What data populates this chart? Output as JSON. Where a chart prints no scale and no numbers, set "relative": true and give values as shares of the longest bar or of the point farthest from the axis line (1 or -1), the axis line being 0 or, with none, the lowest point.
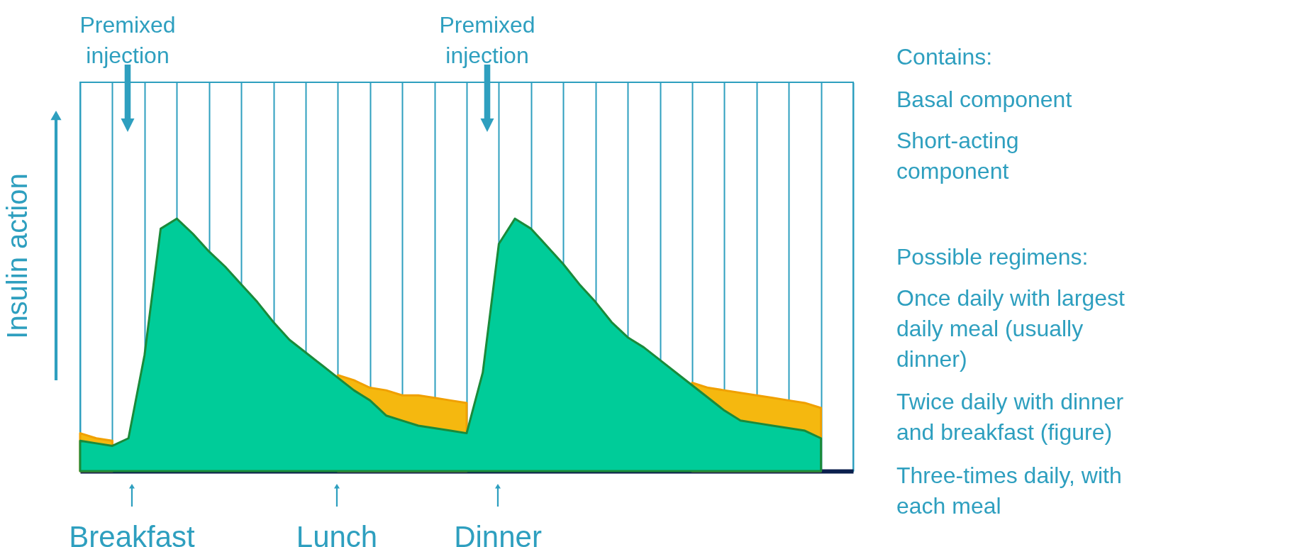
{
  "chart_data": {
    "type": "area",
    "relative": true,
    "grid": "x",
    "ylabel": "Insulin action",
    "categories": [
      null,
      null,
      null,
      null,
      null,
      null,
      null,
      null,
      null,
      null,
      null,
      null,
      null,
      null,
      null,
      null,
      null,
      null,
      null,
      null,
      null,
      null,
      null,
      null,
      null,
      null,
      null,
      null,
      null,
      null,
      null,
      null,
      null,
      null,
      null,
      null,
      null,
      null,
      null,
      null,
      null,
      null,
      null,
      null,
      null,
      null,
      null
    ],
    "series": [
      {
        "color": "#f5b80f",
        "values": [
          0.15,
          0.13,
          0.12,
          null,
          null,
          null,
          null,
          null,
          null,
          null,
          null,
          null,
          null,
          null,
          null,
          null,
          0.38,
          0.36,
          0.33,
          0.32,
          0.3,
          0.3,
          0.29,
          0.28,
          0.27,
          null,
          null,
          null,
          null,
          null,
          null,
          null,
          null,
          null,
          null,
          null,
          null,
          null,
          0.35,
          0.33,
          0.32,
          0.31,
          0.3,
          0.29,
          0.28,
          0.27,
          0.25
        ]
      },
      {
        "color": "#00cc99",
        "values": [
          0.12,
          0.11,
          0.1,
          0.13,
          0.46,
          0.96,
          1.0,
          0.94,
          0.87,
          0.81,
          0.74,
          0.67,
          0.59,
          0.52,
          0.47,
          0.42,
          0.37,
          0.32,
          0.28,
          0.22,
          0.2,
          0.18,
          0.17,
          0.16,
          0.15,
          0.39,
          0.9,
          1.0,
          0.96,
          0.89,
          0.82,
          0.74,
          0.67,
          0.59,
          0.53,
          0.49,
          0.44,
          0.39,
          0.34,
          0.29,
          0.24,
          0.2,
          0.19,
          0.18,
          0.17,
          0.16,
          0.13
        ]
      }
    ],
    "annotations": [
      "Premixed injection",
      "Premixed injection",
      "Breakfast",
      "Lunch",
      "Dinner",
      "Contains:",
      "Basal component",
      "Short-acting component",
      "Possible regimens:",
      "Once daily with largest daily meal (usually dinner)",
      "Twice daily with dinner and breakfast (figure)",
      "Three-times daily, with each meal"
    ]
  }
}
